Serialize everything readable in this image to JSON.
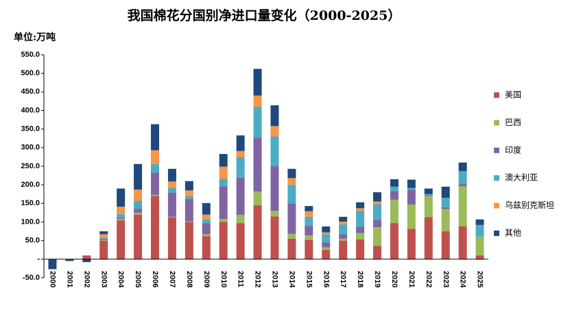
{
  "chart_data": {
    "type": "bar",
    "stacked": true,
    "title": "我国棉花分国别净进口量变化（2000-2025）",
    "y_label": "单位:万吨",
    "categories": [
      "2000",
      "2001",
      "2002",
      "2003",
      "2004",
      "2005",
      "2006",
      "2007",
      "2008",
      "2009",
      "2010",
      "2011",
      "2012",
      "2013",
      "2014",
      "2015",
      "2016",
      "2017",
      "2018",
      "2019",
      "2020",
      "2021",
      "2022",
      "2023",
      "2024",
      "2025"
    ],
    "series": [
      {
        "name": "美国",
        "color": "#c0504d",
        "values": [
          0,
          0,
          10,
          50,
          105,
          120,
          170,
          112,
          100,
          62,
          100,
          97,
          145,
          115,
          55,
          52,
          25,
          50,
          53,
          36,
          97,
          82,
          113,
          75,
          88,
          10
        ]
      },
      {
        "name": "巴西",
        "color": "#9bbb59",
        "values": [
          0,
          0,
          0,
          2,
          3,
          5,
          3,
          2,
          2,
          5,
          8,
          22,
          37,
          15,
          13,
          12,
          7,
          5,
          17,
          50,
          63,
          65,
          57,
          60,
          108,
          50
        ]
      },
      {
        "name": "印度",
        "color": "#8064a2",
        "values": [
          0,
          0,
          0,
          2,
          3,
          10,
          60,
          65,
          60,
          30,
          88,
          100,
          145,
          120,
          82,
          25,
          13,
          12,
          17,
          20,
          23,
          40,
          2,
          5,
          6,
          0
        ]
      },
      {
        "name": "澳大利亚",
        "color": "#4bacc6",
        "values": [
          0,
          0,
          0,
          3,
          10,
          22,
          23,
          12,
          7,
          10,
          20,
          55,
          83,
          80,
          50,
          25,
          22,
          27,
          43,
          42,
          12,
          5,
          3,
          25,
          35,
          32
        ]
      },
      {
        "name": "乌兹别克斯坦",
        "color": "#f79646",
        "values": [
          0,
          0,
          0,
          10,
          20,
          30,
          37,
          18,
          16,
          13,
          33,
          17,
          30,
          28,
          18,
          15,
          5,
          7,
          7,
          7,
          0,
          0,
          0,
          0,
          0,
          0
        ]
      },
      {
        "name": "其他",
        "color": "#1f497d",
        "values": [
          -27,
          -5,
          -8,
          8,
          49,
          69,
          70,
          34,
          25,
          31,
          34,
          42,
          72,
          56,
          25,
          14,
          16,
          13,
          16,
          25,
          20,
          22,
          15,
          30,
          23,
          15
        ]
      }
    ],
    "ylim": [
      -50,
      550
    ],
    "yticks": [
      {
        "value": -50,
        "label": "-50.0"
      },
      {
        "value": 0,
        "label": "-"
      },
      {
        "value": 50,
        "label": "50.0"
      },
      {
        "value": 100,
        "label": "100.0"
      },
      {
        "value": 150,
        "label": "150.0"
      },
      {
        "value": 200,
        "label": "200.0"
      },
      {
        "value": 250,
        "label": "250.0"
      },
      {
        "value": 300,
        "label": "300.0"
      },
      {
        "value": 350,
        "label": "350.0"
      },
      {
        "value": 400,
        "label": "400.0"
      },
      {
        "value": 450,
        "label": "450.0"
      },
      {
        "value": 500,
        "label": "500.0"
      },
      {
        "value": 550,
        "label": "550.0"
      }
    ],
    "grid": false,
    "legend": "right"
  }
}
